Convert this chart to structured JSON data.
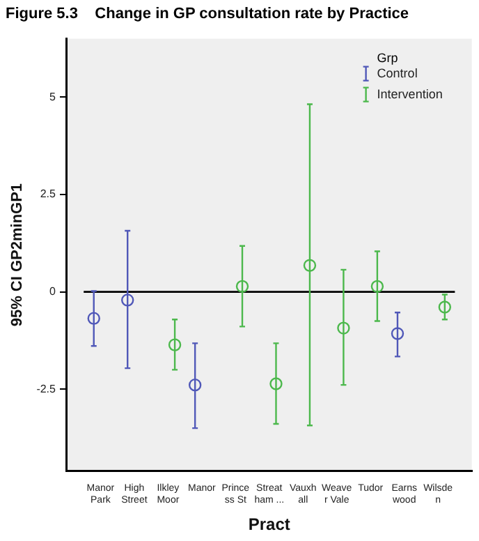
{
  "chart_data": {
    "type": "scatter",
    "title": "Figure 5.3    Change in GP consultation rate by Practice",
    "xlabel": "Pract",
    "ylabel": "95% CI GP2minGP1",
    "legend_title": "Grp",
    "categories": [
      "Manor Park",
      "High Street",
      "Ilkley Moor",
      "Manor",
      "Princess St",
      "Streatham ...",
      "Vauxhall",
      "Weaver Vale",
      "Tudor",
      "Earnswood",
      "Wilsden"
    ],
    "series": [
      {
        "name": "Control",
        "color": "#5058b8",
        "values": [
          -0.68,
          -0.21,
          null,
          -2.39,
          null,
          null,
          null,
          null,
          null,
          -1.07,
          null
        ],
        "errors": [
          [
            -1.39,
            0.02
          ],
          [
            -1.96,
            1.57
          ],
          null,
          [
            -3.5,
            -1.32
          ],
          null,
          null,
          null,
          null,
          null,
          [
            -1.66,
            -0.53
          ],
          null
        ]
      },
      {
        "name": "Intervention",
        "color": "#4cb84c",
        "values": [
          null,
          null,
          -1.36,
          null,
          0.14,
          -2.36,
          0.68,
          -0.93,
          0.14,
          null,
          -0.39
        ],
        "errors": [
          null,
          null,
          [
            -2.0,
            -0.71
          ],
          null,
          [
            -0.89,
            1.18
          ],
          [
            -3.39,
            -1.32
          ],
          [
            -3.43,
            4.82
          ],
          [
            -2.39,
            0.57
          ],
          [
            -0.75,
            1.04
          ],
          null,
          [
            -0.71,
            -0.07
          ]
        ]
      }
    ],
    "ylim": [
      -4.6,
      6.5
    ],
    "yticks": [
      5,
      2.5,
      0,
      -2.5
    ],
    "grid": false,
    "legend": "top right",
    "marker": "circle",
    "ref_lines": [
      {
        "axis": "y",
        "value": 0,
        "color": "#000000"
      }
    ]
  }
}
